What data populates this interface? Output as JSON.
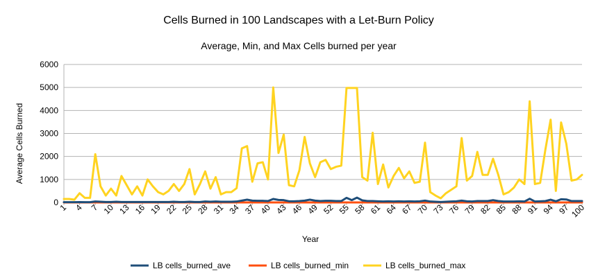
{
  "chart_data": {
    "type": "line",
    "title": "Cells Burned in 100 Landscapes with a Let-Burn Policy",
    "subtitle": "Average, Min, and Max Cells burned per year",
    "xlabel": "Year",
    "ylabel": "Average Cells Burned",
    "ylim": [
      0,
      6000
    ],
    "yticks": [
      0,
      1000,
      2000,
      3000,
      4000,
      5000,
      6000
    ],
    "xlim": [
      1,
      100
    ],
    "xticks": [
      1,
      4,
      7,
      10,
      13,
      16,
      19,
      22,
      25,
      28,
      31,
      34,
      37,
      40,
      43,
      46,
      49,
      52,
      55,
      58,
      61,
      64,
      67,
      70,
      73,
      76,
      79,
      82,
      85,
      88,
      91,
      94,
      97,
      100
    ],
    "grid": "horizontal",
    "legend_position": "bottom",
    "x": [
      1,
      2,
      3,
      4,
      5,
      6,
      7,
      8,
      9,
      10,
      11,
      12,
      13,
      14,
      15,
      16,
      17,
      18,
      19,
      20,
      21,
      22,
      23,
      24,
      25,
      26,
      27,
      28,
      29,
      30,
      31,
      32,
      33,
      34,
      35,
      36,
      37,
      38,
      39,
      40,
      41,
      42,
      43,
      44,
      45,
      46,
      47,
      48,
      49,
      50,
      51,
      52,
      53,
      54,
      55,
      56,
      57,
      58,
      59,
      60,
      61,
      62,
      63,
      64,
      65,
      66,
      67,
      68,
      69,
      70,
      71,
      72,
      73,
      74,
      75,
      76,
      77,
      78,
      79,
      80,
      81,
      82,
      83,
      84,
      85,
      86,
      87,
      88,
      89,
      90,
      91,
      92,
      93,
      94,
      95,
      96,
      97,
      98,
      99,
      100
    ],
    "series": [
      {
        "name": "LB cells_burned_ave",
        "color": "#1f4e79",
        "values": [
          10,
          10,
          10,
          15,
          10,
          10,
          40,
          30,
          20,
          20,
          30,
          20,
          20,
          20,
          20,
          20,
          20,
          20,
          20,
          20,
          20,
          30,
          20,
          20,
          30,
          20,
          20,
          40,
          30,
          40,
          30,
          30,
          30,
          40,
          80,
          120,
          80,
          70,
          70,
          60,
          150,
          110,
          100,
          50,
          50,
          60,
          80,
          120,
          80,
          60,
          70,
          70,
          60,
          60,
          200,
          100,
          210,
          90,
          60,
          60,
          50,
          40,
          50,
          40,
          50,
          40,
          50,
          40,
          50,
          80,
          40,
          30,
          20,
          30,
          40,
          50,
          80,
          50,
          40,
          60,
          60,
          60,
          100,
          60,
          40,
          40,
          40,
          50,
          40,
          160,
          40,
          50,
          60,
          120,
          50,
          140,
          130,
          60,
          60,
          60
        ]
      },
      {
        "name": "LB cells_burned_min",
        "color": "#ff4f0f",
        "values": [
          0,
          0,
          0,
          0,
          0,
          0,
          0,
          0,
          0,
          0,
          0,
          0,
          0,
          0,
          0,
          0,
          0,
          0,
          0,
          0,
          0,
          0,
          0,
          0,
          0,
          0,
          0,
          0,
          0,
          0,
          0,
          0,
          0,
          0,
          0,
          0,
          0,
          0,
          0,
          0,
          0,
          0,
          0,
          0,
          0,
          0,
          0,
          0,
          0,
          0,
          0,
          0,
          0,
          0,
          0,
          0,
          0,
          0,
          0,
          0,
          0,
          0,
          0,
          0,
          0,
          0,
          0,
          0,
          0,
          0,
          0,
          0,
          0,
          0,
          0,
          0,
          0,
          0,
          0,
          0,
          0,
          0,
          0,
          0,
          0,
          0,
          0,
          0,
          0,
          0,
          0,
          0,
          0,
          0,
          0,
          0,
          0,
          0,
          0,
          0
        ]
      },
      {
        "name": "LB cells_burned_max",
        "color": "#ffd320",
        "values": [
          150,
          150,
          120,
          400,
          200,
          200,
          2100,
          700,
          300,
          600,
          300,
          1150,
          750,
          350,
          700,
          300,
          1000,
          700,
          450,
          350,
          500,
          800,
          500,
          800,
          1450,
          350,
          800,
          1350,
          600,
          1100,
          350,
          450,
          450,
          620,
          2350,
          2450,
          900,
          1700,
          1750,
          1000,
          5000,
          2150,
          2950,
          750,
          700,
          1400,
          2850,
          1700,
          1100,
          1750,
          1850,
          1450,
          1550,
          1600,
          4980,
          4980,
          4980,
          1100,
          950,
          3030,
          800,
          1650,
          650,
          1150,
          1500,
          1050,
          1350,
          850,
          900,
          2600,
          450,
          300,
          180,
          400,
          550,
          700,
          2800,
          950,
          1150,
          2200,
          1200,
          1200,
          1900,
          1200,
          350,
          450,
          650,
          1000,
          800,
          4400,
          800,
          850,
          2300,
          3600,
          500,
          3480,
          2550,
          950,
          1000,
          1200
        ]
      }
    ]
  }
}
